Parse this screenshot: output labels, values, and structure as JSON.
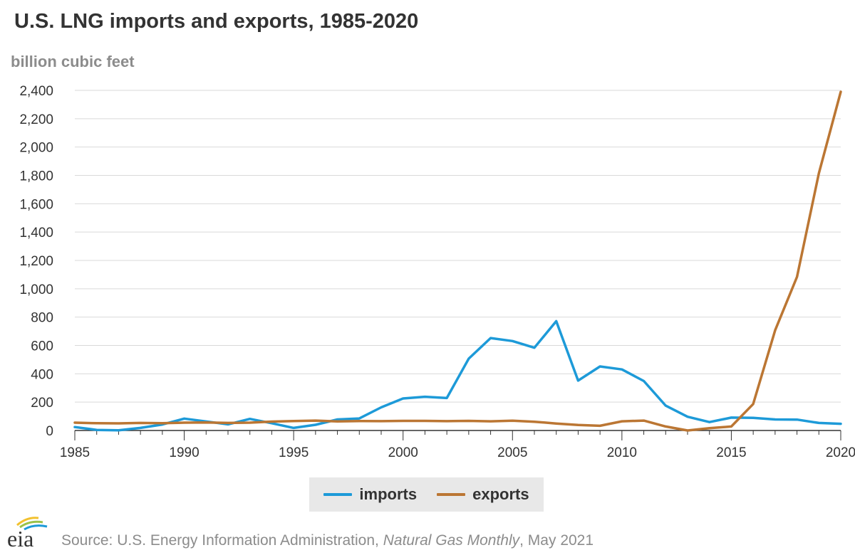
{
  "title": "U.S. LNG imports and exports, 1985-2020",
  "unit_label": "billion cubic feet",
  "source": {
    "prefix": "Source: U.S. Energy Information Administration, ",
    "publication": "Natural Gas Monthly",
    "suffix": ", May 2021"
  },
  "logo_text": "eia",
  "colors": {
    "imports": "#1d9ad8",
    "exports": "#bb7633",
    "grid": "#d9d9d9",
    "axis": "#333333"
  },
  "chart_data": {
    "type": "line",
    "title": "U.S. LNG imports and exports, 1985-2020",
    "ylabel": "billion cubic feet",
    "xlabel": "",
    "xlim": [
      1985,
      2020
    ],
    "ylim": [
      0,
      2400
    ],
    "yticks": [
      0,
      200,
      400,
      600,
      800,
      1000,
      1200,
      1400,
      1600,
      1800,
      2000,
      2200,
      2400
    ],
    "ytick_labels": [
      "0",
      "200",
      "400",
      "600",
      "800",
      "1,000",
      "1,200",
      "1,400",
      "1,600",
      "1,800",
      "2,000",
      "2,200",
      "2,400"
    ],
    "xticks": [
      1985,
      1990,
      1995,
      2000,
      2005,
      2010,
      2015,
      2020
    ],
    "grid": "horizontal",
    "legend_position": "bottom-center",
    "x": [
      1985,
      1986,
      1987,
      1988,
      1989,
      1990,
      1991,
      1992,
      1993,
      1994,
      1995,
      1996,
      1997,
      1998,
      1999,
      2000,
      2001,
      2002,
      2003,
      2004,
      2005,
      2006,
      2007,
      2008,
      2009,
      2010,
      2011,
      2012,
      2013,
      2014,
      2015,
      2016,
      2017,
      2018,
      2019,
      2020
    ],
    "series": [
      {
        "name": "imports",
        "values": [
          24,
          4,
          1,
          18,
          42,
          84,
          64,
          43,
          82,
          51,
          18,
          40,
          78,
          85,
          163,
          226,
          238,
          229,
          507,
          652,
          631,
          584,
          771,
          352,
          452,
          431,
          349,
          175,
          97,
          59,
          91,
          89,
          78,
          77,
          53,
          47
        ]
      },
      {
        "name": "exports",
        "values": [
          55,
          51,
          50,
          53,
          51,
          55,
          56,
          53,
          55,
          63,
          67,
          70,
          64,
          67,
          66,
          68,
          68,
          66,
          68,
          65,
          69,
          62,
          49,
          39,
          33,
          65,
          70,
          28,
          0,
          16,
          28,
          187,
          707,
          1084,
          1815,
          2390
        ]
      }
    ]
  }
}
